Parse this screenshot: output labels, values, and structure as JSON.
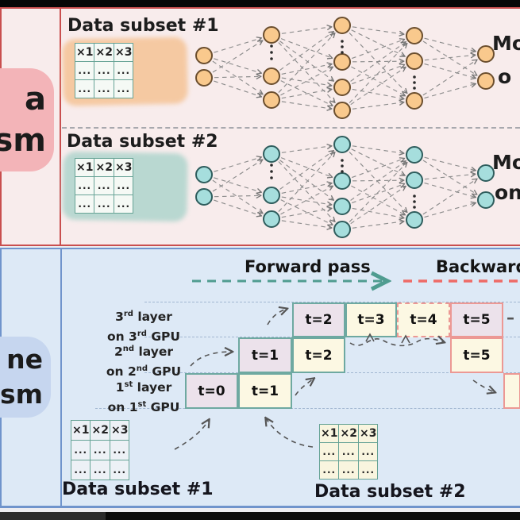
{
  "data_parallelism": {
    "pill": {
      "line1": "a",
      "line2": "lism"
    },
    "groups": [
      {
        "title": "Data subset #1",
        "right_line1": "Mo",
        "right_line2": "o",
        "node_fill": "#f9c98d",
        "node_stroke": "#6b4e2e",
        "glow": "#f5c9a2"
      },
      {
        "title": "Data subset #2",
        "right_line1": "Mo",
        "right_line2": "on",
        "node_fill": "#a6dedd",
        "node_stroke": "#2f5d5d",
        "glow": "#b9d8d1"
      }
    ],
    "table": {
      "headers": [
        "×1",
        "×2",
        "×3"
      ],
      "rows": [
        [
          "...",
          "...",
          "..."
        ],
        [
          "...",
          "...",
          "..."
        ]
      ]
    }
  },
  "pipeline_parallelism": {
    "pill": {
      "line1": "ne",
      "line2": "lism"
    },
    "forward_label": "Forward pass",
    "backward_label": "Backward",
    "layers": [
      {
        "l1a": "3",
        "l1sup": "rd",
        "l1b": " layer",
        "l2a": "on 3",
        "l2sup": "rd",
        "l2b": " GPU"
      },
      {
        "l1a": "2",
        "l1sup": "nd",
        "l1b": " layer",
        "l2a": "on 2",
        "l2sup": "nd",
        "l2b": " GPU"
      },
      {
        "l1a": "1",
        "l1sup": "st",
        "l1b": " layer",
        "l2a": "on 1",
        "l2sup": "st",
        "l2b": " GPU"
      }
    ],
    "schedule": {
      "cells": [
        {
          "row": 3,
          "col": 2,
          "label": "t=2",
          "fill": "lavender",
          "border": "teal",
          "dashed": false
        },
        {
          "row": 3,
          "col": 3,
          "label": "t=3",
          "fill": "cream",
          "border": "teal",
          "dashed": false
        },
        {
          "row": 3,
          "col": 4,
          "label": "t=4",
          "fill": "cream",
          "border": "red",
          "dashed": true
        },
        {
          "row": 3,
          "col": 5,
          "label": "t=5",
          "fill": "lavender",
          "border": "red",
          "dashed": false
        },
        {
          "row": 2,
          "col": 1,
          "label": "t=1",
          "fill": "lavender",
          "border": "teal",
          "dashed": false
        },
        {
          "row": 2,
          "col": 2,
          "label": "t=2",
          "fill": "cream",
          "border": "teal",
          "dashed": false
        },
        {
          "row": 2,
          "col": 5,
          "label": "t=5",
          "fill": "cream",
          "border": "red",
          "dashed": false
        },
        {
          "row": 1,
          "col": 0,
          "label": "t=0",
          "fill": "lavender",
          "border": "teal",
          "dashed": false
        },
        {
          "row": 1,
          "col": 1,
          "label": "t=1",
          "fill": "cream",
          "border": "teal",
          "dashed": false
        },
        {
          "row": 1,
          "col": 6,
          "label": "",
          "fill": "cream",
          "border": "red",
          "dashed": false
        }
      ],
      "continuation_mark": "–"
    },
    "tables": [
      {
        "title": "Data subset #1",
        "headers": [
          "×1",
          "×2",
          "×3"
        ],
        "rows": [
          [
            "...",
            "...",
            "..."
          ],
          [
            "...",
            "...",
            "..."
          ]
        ]
      },
      {
        "title": "Data subset #2",
        "headers": [
          "×1",
          "×2",
          "×3"
        ],
        "rows": [
          [
            "...",
            "...",
            "..."
          ],
          [
            "...",
            "...",
            "..."
          ]
        ]
      }
    ]
  },
  "colors": {
    "top_bg": "#f8ecec",
    "top_border": "#c94f4f",
    "pill_pink": "#f3b4b8",
    "bottom_bg": "#dde9f6",
    "bottom_border": "#7094cc",
    "pill_blue": "#c6d6ef",
    "cell_lavender": "#ece2eb",
    "cell_cream": "#fcf8e3",
    "cell_border_teal": "#6ea9a1",
    "cell_border_red": "#ec9894",
    "forward_arrow": "#4f9c90",
    "backward_arrow": "#ee6a66",
    "edge_gray": "#8d8d8d",
    "table_border": "#67a396"
  }
}
